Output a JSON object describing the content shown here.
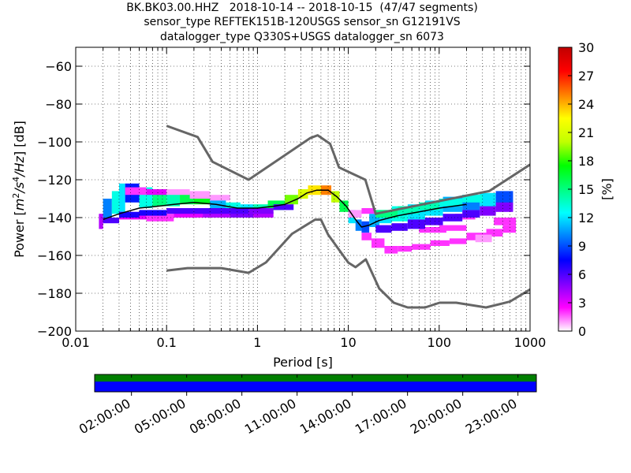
{
  "title_lines": [
    "BK.BK03.00.HHZ   2018-10-14 -- 2018-10-15  (47/47 segments)",
    "sensor_type REFTEK151B-120USGS sensor_sn G12191VS",
    "datalogger_type Q330S+USGS datalogger_sn 6073"
  ],
  "chart_data": {
    "type": "heatmap",
    "xscale": "log",
    "xlim": [
      0.01,
      1000
    ],
    "ylim": [
      -200,
      -50
    ],
    "xlabel": "Period [s]",
    "ylabel_parts": [
      "Power [",
      "m",
      "2",
      "/",
      "s",
      "4",
      "/",
      "Hz",
      "] [dB]"
    ],
    "x_ticks": [
      {
        "value": 0.01,
        "label": "0.01"
      },
      {
        "value": 0.1,
        "label": "0.1"
      },
      {
        "value": 1,
        "label": "1"
      },
      {
        "value": 10,
        "label": "10"
      },
      {
        "value": 100,
        "label": "100"
      },
      {
        "value": 1000,
        "label": "1000"
      }
    ],
    "y_ticks": [
      {
        "value": -60,
        "label": "−60"
      },
      {
        "value": -80,
        "label": "−80"
      },
      {
        "value": -100,
        "label": "−100"
      },
      {
        "value": -120,
        "label": "−120"
      },
      {
        "value": -140,
        "label": "−140"
      },
      {
        "value": -160,
        "label": "−160"
      },
      {
        "value": -180,
        "label": "−180"
      },
      {
        "value": -200,
        "label": "−200"
      }
    ],
    "grid": true,
    "colorbar": {
      "label": "[%]",
      "range": [
        0,
        30
      ],
      "ticks": [
        {
          "value": 0,
          "label": "0"
        },
        {
          "value": 3,
          "label": "3"
        },
        {
          "value": 6,
          "label": "6"
        },
        {
          "value": 9,
          "label": "9"
        },
        {
          "value": 12,
          "label": "12"
        },
        {
          "value": 15,
          "label": "15"
        },
        {
          "value": 18,
          "label": "18"
        },
        {
          "value": 21,
          "label": "21"
        },
        {
          "value": 24,
          "label": "24"
        },
        {
          "value": 27,
          "label": "27"
        },
        {
          "value": 30,
          "label": "30"
        }
      ],
      "colors": [
        "#ffffff",
        "#ff00ff",
        "#8000ff",
        "#0000ff",
        "#0080ff",
        "#00ffff",
        "#00ff80",
        "#00ff00",
        "#c0ff00",
        "#ffff00",
        "#ff8000",
        "#ff0000",
        "#c00000"
      ]
    },
    "nhnm": {
      "name": "NHNM",
      "color": "#666666",
      "points": [
        [
          0.1,
          -91.5
        ],
        [
          0.22,
          -97.4
        ],
        [
          0.32,
          -110.5
        ],
        [
          0.8,
          -120
        ],
        [
          3.8,
          -98
        ],
        [
          4.6,
          -96.5
        ],
        [
          6.3,
          -101
        ],
        [
          7.9,
          -113.5
        ],
        [
          15.4,
          -120
        ],
        [
          20,
          -138
        ],
        [
          354.8,
          -126
        ],
        [
          1000,
          -112
        ]
      ]
    },
    "nlnm": {
      "name": "NLNM",
      "color": "#666666",
      "points": [
        [
          0.1,
          -168
        ],
        [
          0.17,
          -166.7
        ],
        [
          0.4,
          -166.7
        ],
        [
          0.8,
          -169.2
        ],
        [
          1.24,
          -163.7
        ],
        [
          2.4,
          -148.6
        ],
        [
          4.3,
          -141.1
        ],
        [
          5,
          -141.1
        ],
        [
          6,
          -149
        ],
        [
          10,
          -163.8
        ],
        [
          12,
          -166.2
        ],
        [
          15.6,
          -162.1
        ],
        [
          21.9,
          -177.5
        ],
        [
          31.6,
          -185
        ],
        [
          45,
          -187.5
        ],
        [
          70,
          -187.5
        ],
        [
          101,
          -185
        ],
        [
          154,
          -185
        ],
        [
          328,
          -187.5
        ],
        [
          600,
          -184.4
        ],
        [
          1000,
          -178
        ]
      ]
    },
    "mode_curve": {
      "color": "#000000",
      "points": [
        [
          0.02,
          -141
        ],
        [
          0.03,
          -138
        ],
        [
          0.05,
          -135
        ],
        [
          0.08,
          -134
        ],
        [
          0.12,
          -133
        ],
        [
          0.2,
          -132
        ],
        [
          0.35,
          -133
        ],
        [
          0.6,
          -135
        ],
        [
          1,
          -135
        ],
        [
          1.5,
          -134
        ],
        [
          2,
          -133
        ],
        [
          2.8,
          -130
        ],
        [
          3.5,
          -127
        ],
        [
          4.5,
          -125.5
        ],
        [
          6,
          -125.5
        ],
        [
          7.5,
          -129
        ],
        [
          9.5,
          -134
        ],
        [
          12,
          -141
        ],
        [
          14,
          -145
        ],
        [
          17,
          -144
        ],
        [
          22,
          -141.5
        ],
        [
          35,
          -139
        ],
        [
          60,
          -137
        ],
        [
          100,
          -135
        ],
        [
          200,
          -133
        ]
      ]
    },
    "cells": [
      [
        0.018,
        0.02,
        -146,
        -138,
        4
      ],
      [
        0.02,
        0.025,
        -140,
        -130,
        10
      ],
      [
        0.025,
        0.03,
        -138,
        -126,
        13
      ],
      [
        0.03,
        0.035,
        -137,
        -122,
        12
      ],
      [
        0.035,
        0.05,
        -132,
        -122,
        8
      ],
      [
        0.05,
        0.07,
        -135,
        -124,
        13
      ],
      [
        0.07,
        0.1,
        -134,
        -125,
        15
      ],
      [
        0.1,
        0.14,
        -134,
        -126,
        14
      ],
      [
        0.14,
        0.2,
        -133,
        -127,
        16
      ],
      [
        0.2,
        0.3,
        -133,
        -127,
        17
      ],
      [
        0.3,
        0.45,
        -136,
        -130,
        11
      ],
      [
        0.45,
        0.65,
        -137,
        -132,
        13
      ],
      [
        0.65,
        0.9,
        -137,
        -133,
        12
      ],
      [
        0.9,
        1.3,
        -137,
        -133,
        14
      ],
      [
        1.3,
        2,
        -136,
        -131,
        16
      ],
      [
        2,
        2.8,
        -133,
        -128,
        19
      ],
      [
        2.8,
        3.6,
        -130,
        -125,
        21
      ],
      [
        3.6,
        5,
        -128,
        -123,
        23
      ],
      [
        5,
        6.5,
        -128,
        -123,
        25
      ],
      [
        6.5,
        8,
        -132,
        -126,
        20
      ],
      [
        8,
        10,
        -137,
        -131,
        16
      ],
      [
        10,
        12,
        -143,
        -136,
        12
      ],
      [
        12,
        14,
        -147,
        -141,
        10
      ],
      [
        14,
        17,
        -148,
        -142,
        9
      ],
      [
        17,
        22,
        -145,
        -138,
        11
      ],
      [
        22,
        30,
        -143,
        -136,
        12
      ],
      [
        30,
        45,
        -142,
        -134,
        13
      ],
      [
        45,
        70,
        -141,
        -133,
        12
      ],
      [
        70,
        110,
        -139,
        -131,
        12
      ],
      [
        110,
        180,
        -137,
        -129,
        11
      ],
      [
        180,
        280,
        -136,
        -128,
        10
      ],
      [
        280,
        420,
        -135,
        -127,
        12
      ],
      [
        420,
        650,
        -134,
        -126,
        9
      ],
      [
        0.03,
        0.06,
        -141,
        -137,
        3
      ],
      [
        0.06,
        0.12,
        -142,
        -138,
        2
      ],
      [
        0.12,
        0.25,
        -140,
        -136,
        3
      ],
      [
        0.25,
        0.5,
        -140,
        -137,
        4
      ],
      [
        0.5,
        0.9,
        -140,
        -137,
        5
      ],
      [
        0.9,
        1.5,
        -140,
        -137,
        4
      ],
      [
        0.035,
        0.06,
        -128,
        -124,
        2
      ],
      [
        0.06,
        0.1,
        -128,
        -125,
        3
      ],
      [
        0.1,
        0.18,
        -128,
        -125,
        1
      ],
      [
        0.18,
        0.3,
        -130,
        -126,
        1
      ],
      [
        0.3,
        0.5,
        -131,
        -128,
        1
      ],
      [
        0.02,
        0.03,
        -143,
        -140,
        6
      ],
      [
        0.03,
        0.05,
        -140,
        -137,
        7
      ],
      [
        0.05,
        0.1,
        -139,
        -136,
        7
      ],
      [
        0.1,
        0.2,
        -138,
        -135,
        6
      ],
      [
        0.2,
        0.4,
        -138,
        -135,
        6
      ],
      [
        0.4,
        0.8,
        -138,
        -135,
        6
      ],
      [
        0.8,
        1.5,
        -138,
        -135,
        5
      ],
      [
        1.5,
        2.5,
        -136,
        -133,
        6
      ],
      [
        14,
        18,
        -152,
        -148,
        2
      ],
      [
        18,
        25,
        -156,
        -151,
        2
      ],
      [
        25,
        35,
        -159,
        -155,
        2
      ],
      [
        35,
        50,
        -158,
        -155,
        2
      ],
      [
        50,
        80,
        -157,
        -154,
        2
      ],
      [
        80,
        130,
        -155,
        -152,
        2
      ],
      [
        130,
        200,
        -154,
        -151,
        2
      ],
      [
        200,
        330,
        -152,
        -148,
        2
      ],
      [
        330,
        500,
        -150,
        -146,
        2
      ],
      [
        500,
        700,
        -148,
        -144,
        2
      ],
      [
        250,
        380,
        -153,
        -149,
        1
      ],
      [
        400,
        700,
        -144,
        -140,
        2
      ],
      [
        10,
        14,
        -140,
        -136,
        1
      ],
      [
        14,
        20,
        -138,
        -135,
        2
      ],
      [
        20,
        30,
        -140,
        -137,
        1
      ],
      [
        100,
        200,
        -147,
        -144,
        2
      ],
      [
        60,
        120,
        -148,
        -145,
        2
      ],
      [
        150,
        250,
        -141,
        -138,
        2
      ],
      [
        20,
        30,
        -148,
        -144,
        6
      ],
      [
        30,
        45,
        -147,
        -143,
        6
      ],
      [
        45,
        70,
        -146,
        -141,
        6
      ],
      [
        70,
        110,
        -144,
        -140,
        6
      ],
      [
        110,
        180,
        -142,
        -138,
        6
      ],
      [
        180,
        280,
        -140,
        -136,
        6
      ],
      [
        280,
        420,
        -139,
        -134,
        5
      ],
      [
        420,
        650,
        -137,
        -132,
        5
      ],
      [
        20,
        35,
        -140,
        -136,
        15
      ],
      [
        35,
        60,
        -138,
        -134,
        14
      ],
      [
        60,
        100,
        -136,
        -132,
        14
      ],
      [
        100,
        180,
        -134,
        -130,
        13
      ],
      [
        180,
        300,
        -132,
        -128,
        13
      ]
    ]
  },
  "timeline": {
    "labels": [
      "02:00:00",
      "05:00:00",
      "08:00:00",
      "11:00:00",
      "14:00:00",
      "17:00:00",
      "20:00:00",
      "23:00:00"
    ],
    "tick_hours": [
      2,
      5,
      8,
      11,
      14,
      17,
      20,
      23
    ],
    "range_hours": [
      0,
      24
    ],
    "top_color": "#007f00",
    "bottom_color": "#0000ff"
  }
}
